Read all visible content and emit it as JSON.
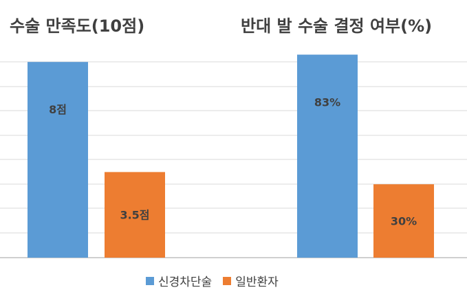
{
  "chart_data": [
    {
      "type": "bar",
      "title": "수술 만족도(10점)",
      "categories": [
        "신경차단술",
        "일반환자"
      ],
      "values": [
        8,
        3.5
      ],
      "data_labels": [
        "8점",
        "3.5점"
      ],
      "ylim": [
        0,
        10
      ],
      "grid": true
    },
    {
      "type": "bar",
      "title": "반대 발 수술 결정 여부(%)",
      "categories": [
        "신경차단술",
        "일반환자"
      ],
      "values": [
        83,
        30
      ],
      "data_labels": [
        "83%",
        "30%"
      ],
      "ylim": [
        0,
        100
      ],
      "grid": true
    }
  ],
  "legend": [
    {
      "label": "신경차단술",
      "color": "#5B9BD5"
    },
    {
      "label": "일반환자",
      "color": "#ED7D31"
    }
  ],
  "colors": {
    "grid": "#D9D9D9",
    "axis": "#BFBFBF",
    "label": "#404040"
  }
}
